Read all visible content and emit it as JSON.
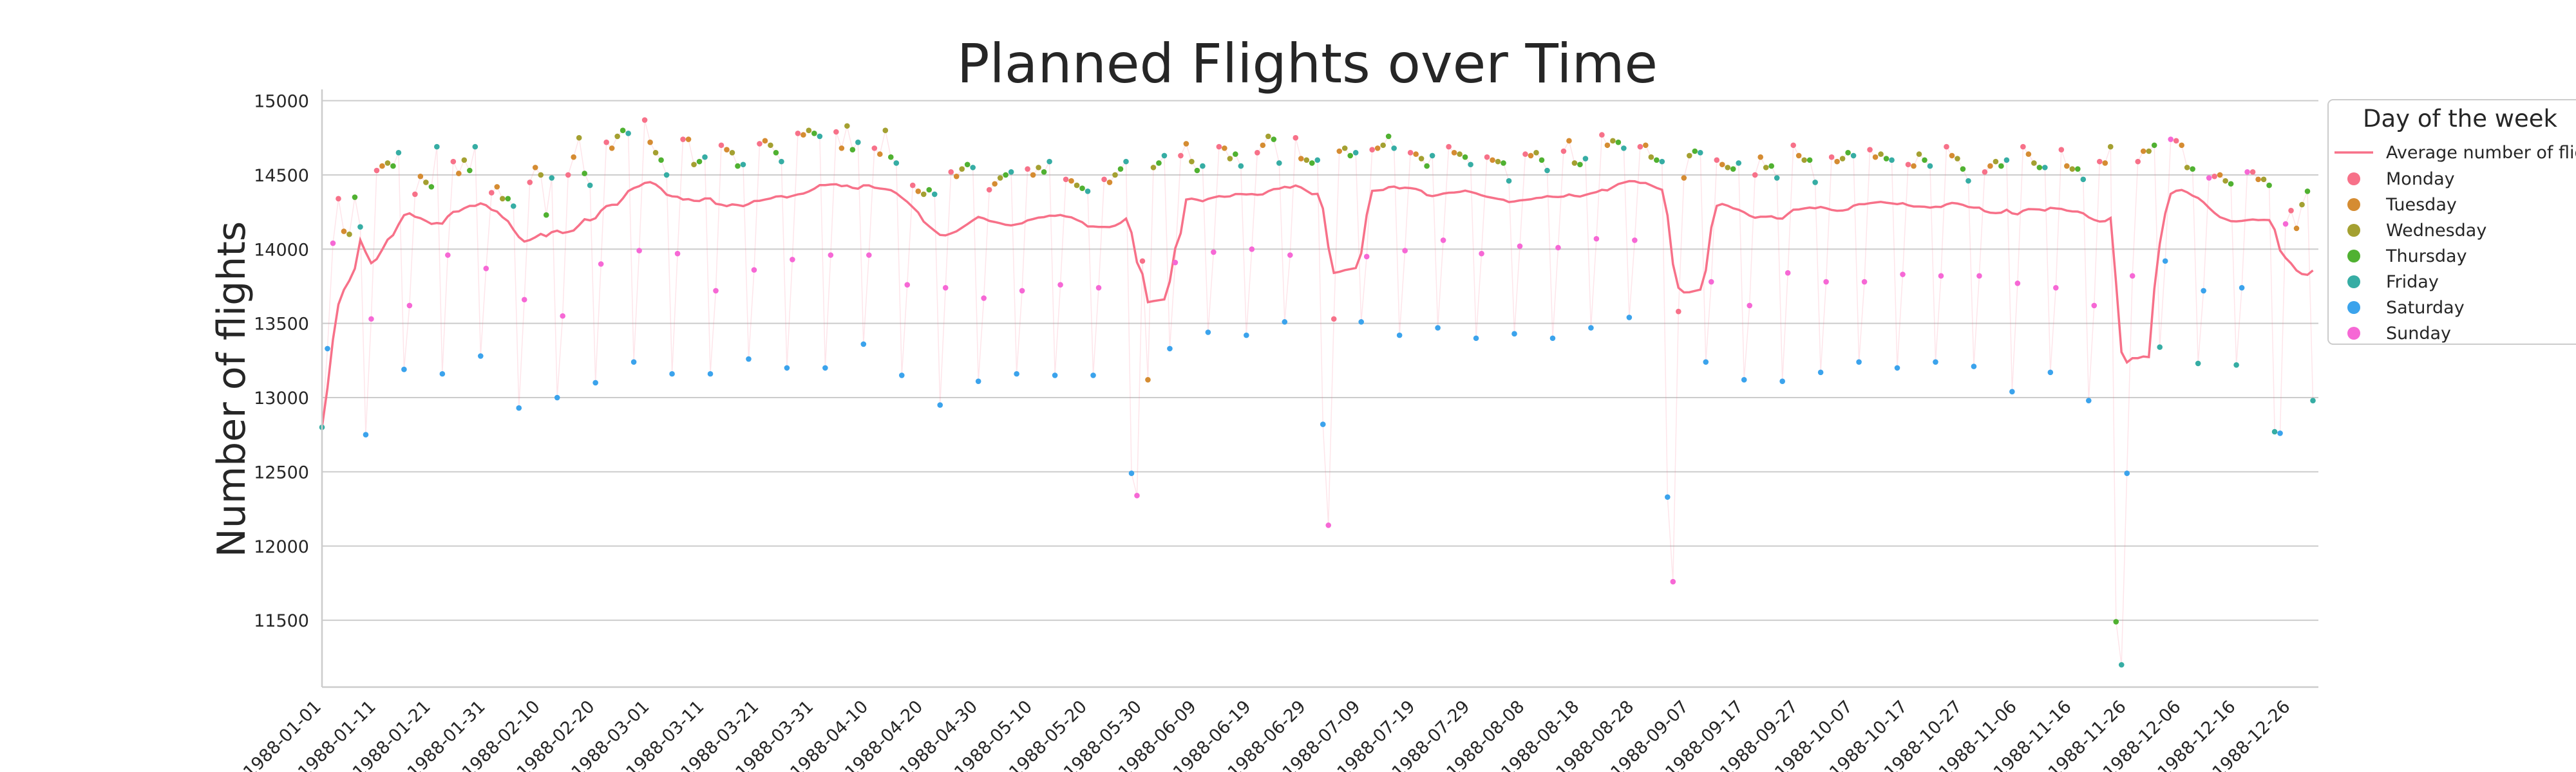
{
  "chart_data": {
    "type": "scatter",
    "title": "Planned Flights over Time",
    "xlabel": "",
    "ylabel": "Number of flights",
    "x_range": [
      "1988-01-01",
      "1988-12-31"
    ],
    "ylim": [
      11050,
      15050
    ],
    "yticks": [
      11500,
      12000,
      12500,
      13000,
      13500,
      14000,
      14500,
      15000
    ],
    "xticks": [
      "1988-01-01",
      "1988-01-11",
      "1988-01-21",
      "1988-01-31",
      "1988-02-10",
      "1988-02-20",
      "1988-03-01",
      "1988-03-11",
      "1988-03-21",
      "1988-03-31",
      "1988-04-10",
      "1988-04-20",
      "1988-04-30",
      "1988-05-10",
      "1988-05-20",
      "1988-05-30",
      "1988-06-09",
      "1988-06-19",
      "1988-06-29",
      "1988-07-09",
      "1988-07-19",
      "1988-07-29",
      "1988-08-08",
      "1988-08-18",
      "1988-08-28",
      "1988-09-07",
      "1988-09-17",
      "1988-09-27",
      "1988-10-07",
      "1988-10-17",
      "1988-10-27",
      "1988-11-06",
      "1988-11-16",
      "1988-11-26",
      "1988-12-06",
      "1988-12-16",
      "1988-12-26"
    ],
    "grid": "horizontal",
    "legend": {
      "title": "Day of the week",
      "placement": "right",
      "line_label": "Average number of flights",
      "entries": [
        {
          "name": "Monday",
          "color": "#f77189"
        },
        {
          "name": "Tuesday",
          "color": "#d58c32"
        },
        {
          "name": "Wednesday",
          "color": "#a4a031"
        },
        {
          "name": "Thursday",
          "color": "#50b131"
        },
        {
          "name": "Friday",
          "color": "#36ada4"
        },
        {
          "name": "Saturday",
          "color": "#3ba3ec"
        },
        {
          "name": "Sunday",
          "color": "#f668d5"
        }
      ]
    },
    "line_color": "#f77189",
    "series": {
      "start_date": "1988-01-01",
      "start_weekday": "Friday",
      "daily_flights": [
        12800,
        13330,
        14040,
        14340,
        14120,
        14100,
        14350,
        14150,
        12750,
        13530,
        14530,
        14560,
        14580,
        14560,
        14650,
        13190,
        13620,
        14370,
        14490,
        14450,
        14420,
        14690,
        13160,
        13960,
        14590,
        14510,
        14600,
        14530,
        14690,
        13280,
        13870,
        14380,
        14420,
        14340,
        14340,
        14290,
        12930,
        13660,
        14450,
        14550,
        14500,
        14230,
        14480,
        13000,
        13550,
        14500,
        14620,
        14750,
        14510,
        14430,
        13100,
        13900,
        14720,
        14680,
        14760,
        14800,
        14780,
        13240,
        13990,
        14870,
        14720,
        14650,
        14600,
        14500,
        13160,
        13970,
        14740,
        14740,
        14570,
        14590,
        14620,
        13160,
        13720,
        14700,
        14670,
        14650,
        14560,
        14570,
        13260,
        13860,
        14710,
        14730,
        14700,
        14650,
        14590,
        13200,
        13930,
        14780,
        14770,
        14800,
        14780,
        14760,
        13200,
        13960,
        14790,
        14680,
        14830,
        14670,
        14720,
        13360,
        13960,
        14680,
        14640,
        14800,
        14620,
        14580,
        13150,
        13760,
        14430,
        14390,
        14370,
        14400,
        14370,
        12950,
        13740,
        14520,
        14490,
        14540,
        14570,
        14550,
        13110,
        13670,
        14400,
        14440,
        14480,
        14500,
        14520,
        13160,
        13720,
        14540,
        14500,
        14550,
        14520,
        14590,
        13150,
        13760,
        14470,
        14460,
        14430,
        14410,
        14390,
        13150,
        13740,
        14470,
        14450,
        14500,
        14540,
        14590,
        12490,
        12340,
        13920,
        13120,
        14550,
        14580,
        14630,
        13330,
        13910,
        14630,
        14710,
        14590,
        14530,
        14560,
        13440,
        13980,
        14690,
        14680,
        14610,
        14640,
        14560,
        13420,
        14000,
        14650,
        14700,
        14760,
        14740,
        14580,
        13510,
        13960,
        14750,
        14610,
        14600,
        14580,
        14600,
        12820,
        12140,
        13530,
        14660,
        14680,
        14630,
        14650,
        13510,
        13950,
        14670,
        14680,
        14700,
        14760,
        14680,
        13420,
        13990,
        14650,
        14640,
        14610,
        14560,
        14630,
        13470,
        14060,
        14690,
        14650,
        14640,
        14620,
        14570,
        13400,
        13970,
        14620,
        14600,
        14590,
        14580,
        14460,
        13430,
        14020,
        14640,
        14630,
        14650,
        14600,
        14530,
        13400,
        14010,
        14660,
        14730,
        14580,
        14570,
        14610,
        13470,
        14070,
        14770,
        14700,
        14730,
        14720,
        14680,
        13540,
        14060,
        14690,
        14700,
        14620,
        14600,
        14590,
        12330,
        11760,
        13580,
        14480,
        14630,
        14660,
        14650,
        13240,
        13780,
        14600,
        14570,
        14550,
        14540,
        14580,
        13120,
        13620,
        14500,
        14620,
        14550,
        14560,
        14480,
        13110,
        13840,
        14700,
        14630,
        14600,
        14600,
        14450,
        13170,
        13780,
        14620,
        14590,
        14610,
        14650,
        14630,
        13240,
        13780,
        14670,
        14620,
        14640,
        14610,
        14600,
        13200,
        13830,
        14570,
        14560,
        14640,
        14600,
        14560,
        13240,
        13820,
        14690,
        14630,
        14610,
        14540,
        14460,
        13210,
        13820,
        14520,
        14560,
        14590,
        14560,
        14600,
        13040,
        13770,
        14690,
        14640,
        14580,
        14550,
        14550,
        13170,
        13740,
        14670,
        14560,
        14540,
        14540,
        14470,
        12980,
        13620,
        14590,
        14580,
        14690,
        11490,
        11200,
        12490,
        13820,
        14590,
        14660,
        14660,
        14700,
        13340,
        13920,
        14740,
        14730,
        14700,
        14550,
        14540,
        13230,
        13720,
        14480,
        14490,
        14500,
        14460,
        14440,
        13220,
        13740,
        14520,
        14520,
        14470,
        14470,
        14430,
        12770,
        12760,
        14170,
        14260,
        14140,
        14300,
        14390,
        12980
      ]
    }
  }
}
